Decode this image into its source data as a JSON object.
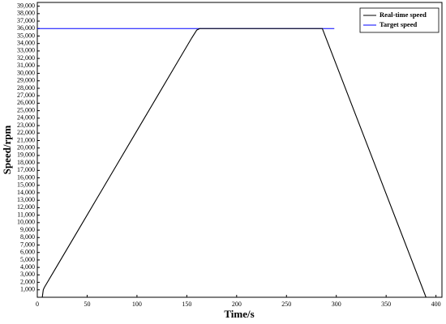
{
  "chart_data": {
    "type": "line",
    "x_label": "Time/s",
    "y_label": "Speed/rpm",
    "xlim": [
      0,
      406
    ],
    "ylim": [
      0,
      39500
    ],
    "xticks": [
      0,
      50,
      100,
      150,
      200,
      250,
      300,
      350,
      400
    ],
    "yticks": [
      {
        "value": 1000,
        "label": "1,000"
      },
      {
        "value": 2000,
        "label": "2,000"
      },
      {
        "value": 3000,
        "label": "3,000"
      },
      {
        "value": 4000,
        "label": "4,000"
      },
      {
        "value": 5000,
        "label": "5,000"
      },
      {
        "value": 6000,
        "label": "6,000"
      },
      {
        "value": 7000,
        "label": "7,000"
      },
      {
        "value": 8000,
        "label": "8,000"
      },
      {
        "value": 9000,
        "label": "9,000"
      },
      {
        "value": 10000,
        "label": "10,000"
      },
      {
        "value": 11000,
        "label": "11,000"
      },
      {
        "value": 12000,
        "label": "12,000"
      },
      {
        "value": 13000,
        "label": "13,000"
      },
      {
        "value": 14000,
        "label": "14,000"
      },
      {
        "value": 15000,
        "label": "15,000"
      },
      {
        "value": 16000,
        "label": "16,000"
      },
      {
        "value": 17000,
        "label": "17,000"
      },
      {
        "value": 18000,
        "label": "18,000"
      },
      {
        "value": 19000,
        "label": "19,000"
      },
      {
        "value": 20000,
        "label": "20,000"
      },
      {
        "value": 21000,
        "label": "21,000"
      },
      {
        "value": 22000,
        "label": "22,000"
      },
      {
        "value": 23000,
        "label": "23,000"
      },
      {
        "value": 24000,
        "label": "24,000"
      },
      {
        "value": 25000,
        "label": "25,000"
      },
      {
        "value": 26000,
        "label": "26,000"
      },
      {
        "value": 27000,
        "label": "27,000"
      },
      {
        "value": 28000,
        "label": "28,000"
      },
      {
        "value": 29000,
        "label": "29,000"
      },
      {
        "value": 30000,
        "label": "30,000"
      },
      {
        "value": 31000,
        "label": "31,000"
      },
      {
        "value": 32000,
        "label": "32,000"
      },
      {
        "value": 33000,
        "label": "33,000"
      },
      {
        "value": 34000,
        "label": "34,000"
      },
      {
        "value": 35000,
        "label": "35,000"
      },
      {
        "value": 36000,
        "label": "36,000"
      },
      {
        "value": 37000,
        "label": "37,000"
      },
      {
        "value": 38000,
        "label": "38,000"
      },
      {
        "value": 39000,
        "label": "39,000"
      }
    ],
    "legend": "upper right",
    "series": [
      {
        "name": "Real-time speed",
        "color": "#000000",
        "x": [
          5,
          6,
          7,
          20,
          40,
          60,
          80,
          100,
          120,
          140,
          155,
          160,
          163,
          200,
          250,
          285,
          286,
          300,
          320,
          340,
          360,
          380,
          390
        ],
        "values": [
          0,
          1000,
          1300,
          4238,
          8758,
          13278,
          17798,
          22318,
          26838,
          31358,
          34750,
          35800,
          36000,
          36000,
          36000,
          36000,
          36000,
          31150,
          24230,
          17310,
          10390,
          3470,
          0
        ]
      },
      {
        "name": "Target speed",
        "color": "#0000ff",
        "x": [
          0,
          298
        ],
        "values": [
          36000,
          36000
        ]
      }
    ]
  }
}
